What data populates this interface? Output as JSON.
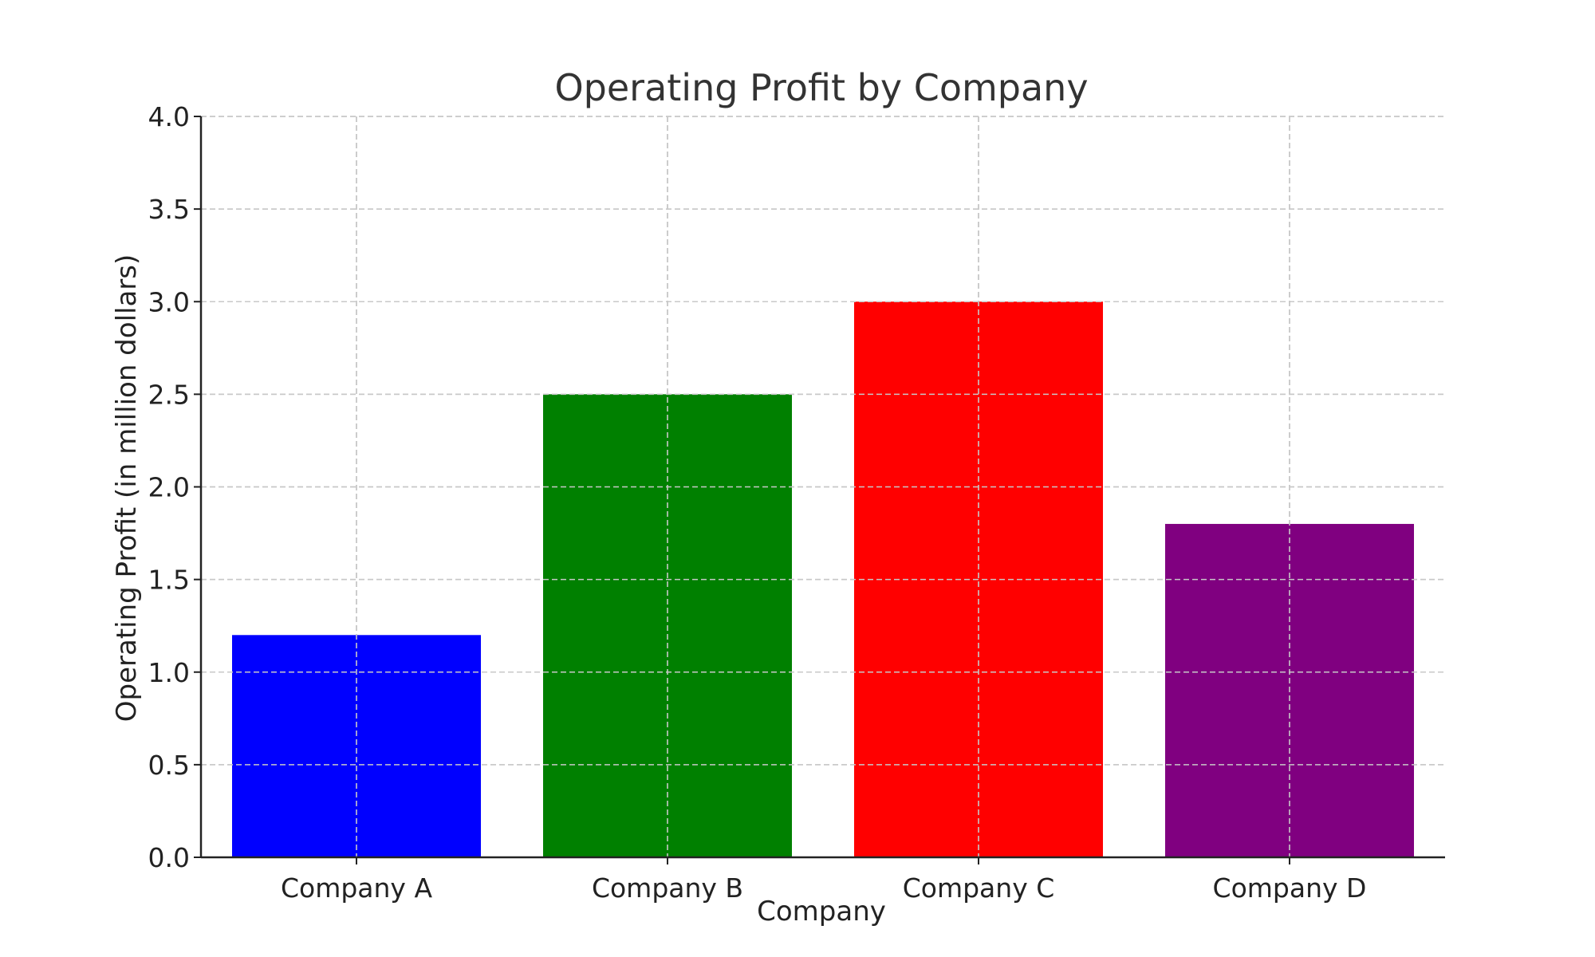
{
  "chart_data": {
    "type": "bar",
    "title": "Operating Profit by Company",
    "xlabel": "Company",
    "ylabel": "Operating Profit (in million dollars)",
    "categories": [
      "Company A",
      "Company B",
      "Company C",
      "Company D"
    ],
    "values": [
      1.2,
      2.5,
      3.0,
      1.8
    ],
    "colors": [
      "#0000ff",
      "#008000",
      "#ff0000",
      "#800080"
    ],
    "ylim": [
      0,
      4.0
    ],
    "yticks": [
      0.0,
      0.5,
      1.0,
      1.5,
      2.0,
      2.5,
      3.0,
      3.5,
      4.0
    ],
    "ytick_labels": [
      "0.0",
      "0.5",
      "1.0",
      "1.5",
      "2.0",
      "2.5",
      "3.0",
      "3.5",
      "4.0"
    ],
    "grid": true,
    "legend": "none"
  }
}
